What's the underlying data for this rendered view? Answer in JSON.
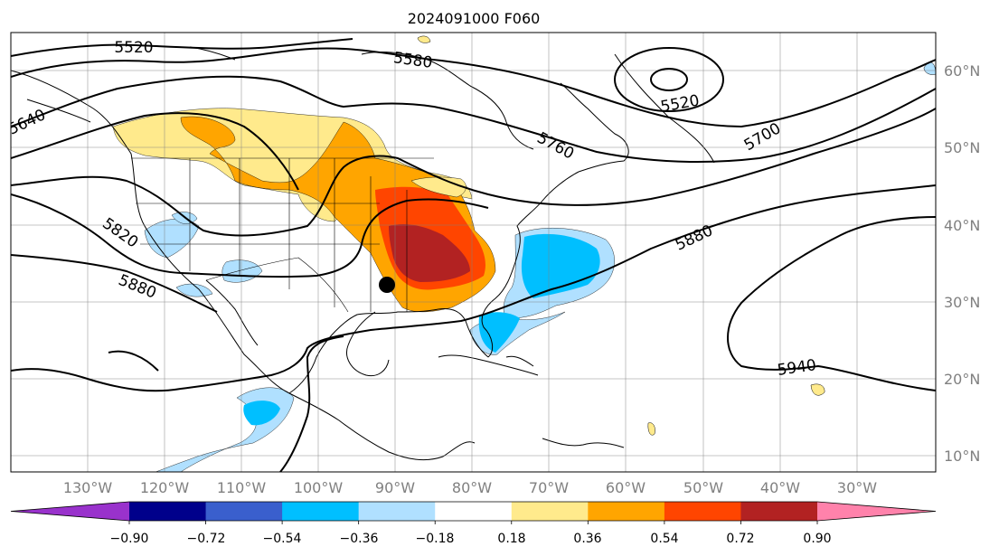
{
  "title": "2024091000 F060",
  "map": {
    "projection": "PlateCarree",
    "lon_range": [
      -135,
      -25
    ],
    "lat_range": [
      8,
      65
    ],
    "gridlines": true,
    "lon_labels": [
      "130°W",
      "120°W",
      "110°W",
      "100°W",
      "90°W",
      "80°W",
      "70°W",
      "60°W",
      "50°W",
      "40°W",
      "30°W"
    ],
    "lat_labels": [
      "60°N",
      "50°N",
      "40°N",
      "30°N",
      "20°N",
      "10°N"
    ],
    "field_contours_label": [
      "5520",
      "5580",
      "5640",
      "5520",
      "5700",
      "5760",
      "5820",
      "5880",
      "5880",
      "5940"
    ],
    "marker": {
      "name": "storm-center",
      "lon": -90.5,
      "lat": 32.5
    }
  },
  "colorbar": {
    "ticks": [
      "−0.90",
      "−0.72",
      "−0.54",
      "−0.36",
      "−0.18",
      "0.18",
      "0.36",
      "0.54",
      "0.72",
      "0.90"
    ],
    "colors": [
      "#9932cc",
      "#00008b",
      "#3a5fcd",
      "#00bfff",
      "#b0e0ff",
      "#ffffff",
      "#ffea8c",
      "#ffa500",
      "#ff4500",
      "#b22222",
      "#ff82ab"
    ]
  }
}
